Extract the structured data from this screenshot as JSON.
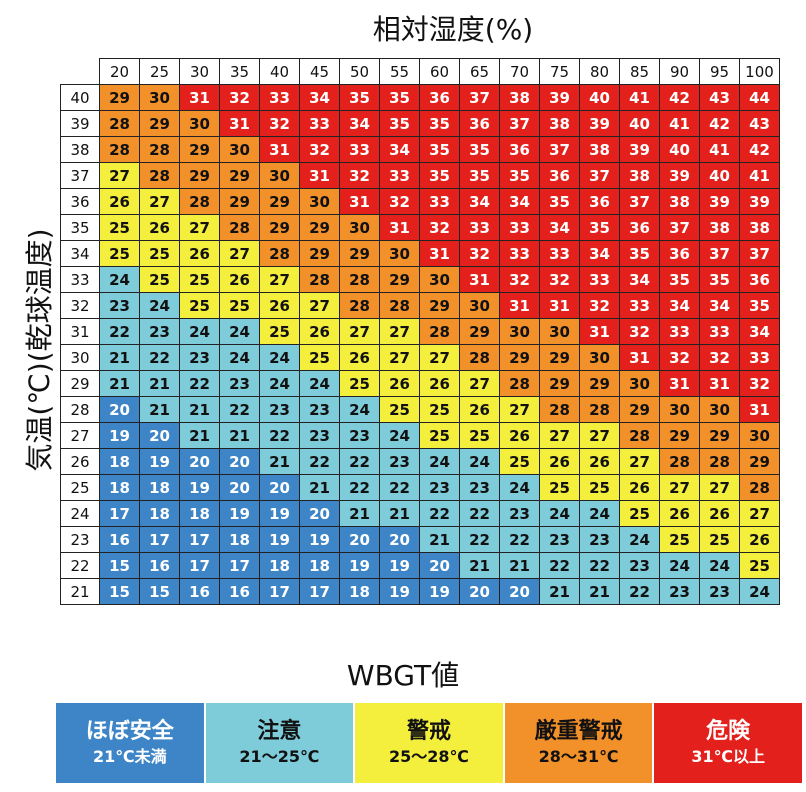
{
  "x_axis_title": "相対湿度(%)",
  "y_axis_title": "気温(℃)(乾球温度)",
  "legend_title": "WBGT値",
  "colors": {
    "safe": "#3d85c6",
    "caution": "#7ecbd9",
    "warning": "#f4ee3c",
    "severe": "#f2902a",
    "danger": "#e3201c"
  },
  "legend": [
    {
      "name": "ほぼ安全",
      "range": "21℃未満",
      "key": "safe",
      "text_color": "#ffffff"
    },
    {
      "name": "注意",
      "range": "21〜25℃",
      "key": "caution",
      "text_color": "#111111"
    },
    {
      "name": "警戒",
      "range": "25〜28℃",
      "key": "warning",
      "text_color": "#111111"
    },
    {
      "name": "厳重警戒",
      "range": "28〜31℃",
      "key": "severe",
      "text_color": "#111111"
    },
    {
      "name": "危険",
      "range": "31℃以上",
      "key": "danger",
      "text_color": "#ffffff"
    }
  ],
  "chart_data": {
    "type": "heatmap",
    "xlabel": "相対湿度(%)",
    "ylabel": "気温(℃)(乾球温度)",
    "x": [
      20,
      25,
      30,
      35,
      40,
      45,
      50,
      55,
      60,
      65,
      70,
      75,
      80,
      85,
      90,
      95,
      100
    ],
    "y": [
      40,
      39,
      38,
      37,
      36,
      35,
      34,
      33,
      32,
      31,
      30,
      29,
      28,
      27,
      26,
      25,
      24,
      23,
      22,
      21
    ],
    "values": [
      [
        29,
        30,
        31,
        32,
        33,
        34,
        35,
        35,
        36,
        37,
        38,
        39,
        40,
        41,
        42,
        43,
        44
      ],
      [
        28,
        29,
        30,
        31,
        32,
        33,
        34,
        35,
        35,
        36,
        37,
        38,
        39,
        40,
        41,
        42,
        43
      ],
      [
        28,
        28,
        29,
        30,
        31,
        32,
        33,
        34,
        35,
        35,
        36,
        37,
        38,
        39,
        40,
        41,
        42
      ],
      [
        27,
        28,
        29,
        29,
        30,
        31,
        32,
        33,
        35,
        35,
        35,
        36,
        37,
        38,
        39,
        40,
        41
      ],
      [
        26,
        27,
        28,
        29,
        29,
        30,
        31,
        32,
        33,
        34,
        34,
        35,
        36,
        37,
        38,
        39,
        39
      ],
      [
        25,
        26,
        27,
        28,
        29,
        29,
        30,
        31,
        32,
        33,
        33,
        34,
        35,
        36,
        37,
        38,
        38
      ],
      [
        25,
        25,
        26,
        27,
        28,
        29,
        29,
        30,
        31,
        32,
        33,
        33,
        34,
        35,
        36,
        37,
        37
      ],
      [
        24,
        25,
        25,
        26,
        27,
        28,
        28,
        29,
        30,
        31,
        32,
        32,
        33,
        34,
        35,
        35,
        36
      ],
      [
        23,
        24,
        25,
        25,
        26,
        27,
        28,
        28,
        29,
        30,
        31,
        31,
        32,
        33,
        34,
        34,
        35
      ],
      [
        22,
        23,
        24,
        24,
        25,
        26,
        27,
        27,
        28,
        29,
        30,
        30,
        31,
        32,
        33,
        33,
        34
      ],
      [
        21,
        22,
        23,
        24,
        24,
        25,
        26,
        27,
        27,
        28,
        29,
        29,
        30,
        31,
        32,
        32,
        33
      ],
      [
        21,
        21,
        22,
        23,
        24,
        24,
        25,
        26,
        26,
        27,
        28,
        29,
        29,
        30,
        31,
        31,
        32
      ],
      [
        20,
        21,
        21,
        22,
        23,
        23,
        24,
        25,
        25,
        26,
        27,
        28,
        28,
        29,
        30,
        30,
        31
      ],
      [
        19,
        20,
        21,
        21,
        22,
        23,
        23,
        24,
        25,
        25,
        26,
        27,
        27,
        28,
        29,
        29,
        30
      ],
      [
        18,
        19,
        20,
        20,
        21,
        22,
        22,
        23,
        24,
        24,
        25,
        26,
        26,
        27,
        28,
        28,
        29
      ],
      [
        18,
        18,
        19,
        20,
        20,
        21,
        22,
        22,
        23,
        23,
        24,
        25,
        25,
        26,
        27,
        27,
        28
      ],
      [
        17,
        18,
        18,
        19,
        19,
        20,
        21,
        21,
        22,
        22,
        23,
        24,
        24,
        25,
        26,
        26,
        27
      ],
      [
        16,
        17,
        17,
        18,
        19,
        19,
        20,
        20,
        21,
        22,
        22,
        23,
        23,
        24,
        25,
        25,
        26
      ],
      [
        15,
        16,
        17,
        17,
        18,
        18,
        19,
        19,
        20,
        21,
        21,
        22,
        22,
        23,
        24,
        24,
        25
      ],
      [
        15,
        15,
        16,
        16,
        17,
        17,
        18,
        19,
        19,
        20,
        20,
        21,
        21,
        22,
        23,
        23,
        24
      ]
    ]
  }
}
